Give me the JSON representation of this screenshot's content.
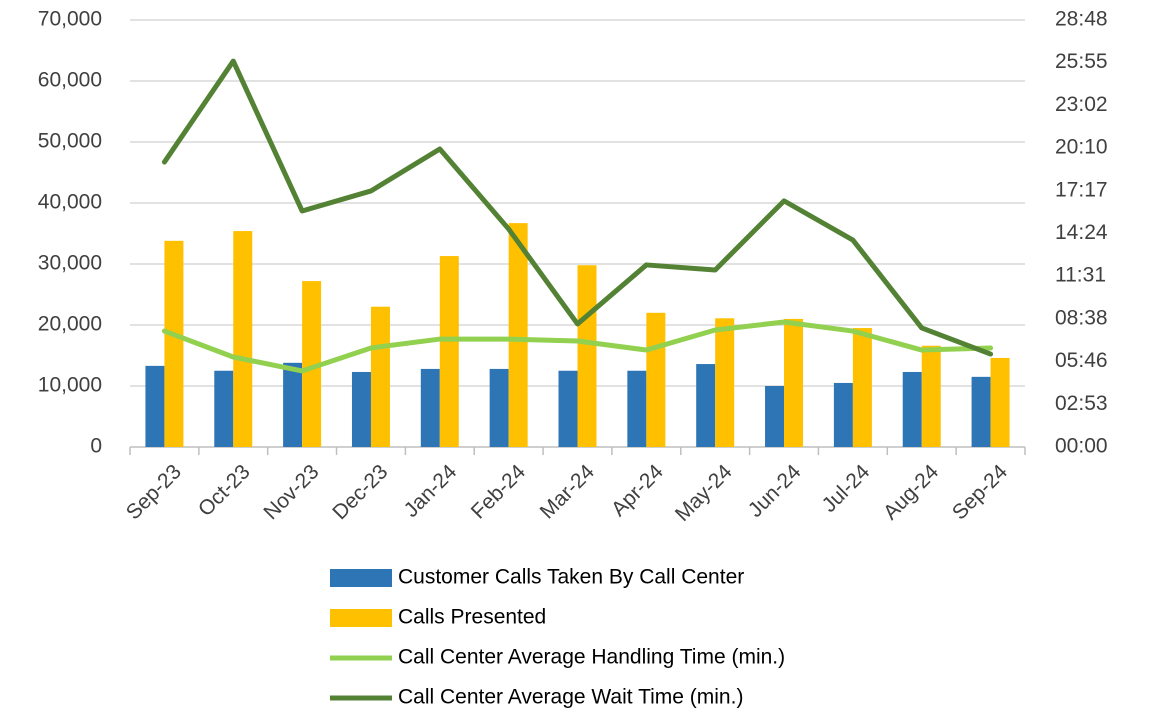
{
  "chart_data": {
    "type": "bar",
    "categories": [
      "Sep-23",
      "Oct-23",
      "Nov-23",
      "Dec-23",
      "Jan-24",
      "Feb-24",
      "Mar-24",
      "Apr-24",
      "May-24",
      "Jun-24",
      "Jul-24",
      "Aug-24",
      "Sep-24"
    ],
    "series": [
      {
        "name": "Customer Calls Taken By Call Center",
        "type": "bar",
        "color": "#2e75b6",
        "values": [
          13300,
          12500,
          13800,
          12300,
          12800,
          12800,
          12500,
          12500,
          13600,
          10000,
          10500,
          12300,
          11500
        ]
      },
      {
        "name": "Calls Presented",
        "type": "bar",
        "color": "#ffc000",
        "values": [
          33800,
          35400,
          27200,
          23000,
          31300,
          36700,
          29800,
          22000,
          21100,
          21000,
          19500,
          16600,
          14600
        ]
      },
      {
        "name": "Call Center Average Handling Time (min.)",
        "type": "line",
        "axis": "y2",
        "color": "#92d050",
        "values": [
          7.82,
          6.07,
          5.13,
          6.68,
          7.28,
          7.28,
          7.15,
          6.54,
          7.89,
          8.43,
          7.82,
          6.54,
          6.68
        ]
      },
      {
        "name": "Call Center Average Wait Time (min.)",
        "type": "line",
        "axis": "y2",
        "color": "#548235",
        "values": [
          19.22,
          26.03,
          15.92,
          17.27,
          20.1,
          14.7,
          8.3,
          12.28,
          11.94,
          16.6,
          13.96,
          8.03,
          6.27
        ]
      }
    ],
    "ylim": [
      0,
      70000
    ],
    "yticks": [
      0,
      {
        "value": 10000,
        "label": "10,000"
      },
      {
        "value": 20000,
        "label": "20,000"
      },
      {
        "value": 30000,
        "label": "30,000"
      },
      {
        "value": 40000,
        "label": "40,000"
      },
      {
        "value": 50000,
        "label": "50,000"
      },
      {
        "value": 60000,
        "label": "60,000"
      },
      {
        "value": 70000,
        "label": "70,000"
      }
    ],
    "y2lim": [
      0,
      28.8
    ],
    "y2ticks": [
      {
        "value": 0,
        "label": "00:00"
      },
      {
        "value": 2.88,
        "label": "02:53"
      },
      {
        "value": 5.76,
        "label": "05:46"
      },
      {
        "value": 8.64,
        "label": "08:38"
      },
      {
        "value": 11.52,
        "label": "11:31"
      },
      {
        "value": 14.4,
        "label": "14:24"
      },
      {
        "value": 17.28,
        "label": "17:17"
      },
      {
        "value": 20.16,
        "label": "20:10"
      },
      {
        "value": 23.04,
        "label": "23:02"
      },
      {
        "value": 25.92,
        "label": "25:55"
      },
      {
        "value": 28.8,
        "label": "28:48"
      }
    ],
    "grid": true,
    "legend": "bottom"
  }
}
